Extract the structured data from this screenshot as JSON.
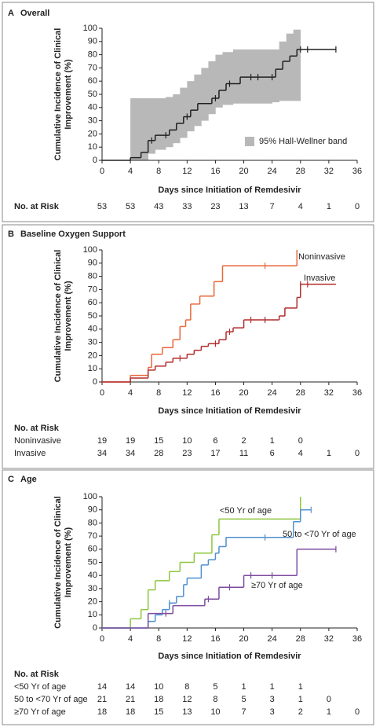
{
  "chart_data": [
    {
      "type": "step",
      "label": "A",
      "title": "Overall",
      "xlabel": "Days since Initiation of Remdesivir",
      "ylabel": [
        "Cumulative Incidence of Clinical",
        "Improvement (%)"
      ],
      "xlim": [
        0,
        36
      ],
      "xticks": [
        0,
        4,
        8,
        12,
        16,
        20,
        24,
        28,
        32,
        36
      ],
      "ylim": [
        0,
        100
      ],
      "yticks": [
        0,
        10,
        20,
        30,
        40,
        50,
        60,
        70,
        80,
        90,
        100
      ],
      "band": {
        "name": "95% Hall-Wellner band",
        "color": "#b8b8b8",
        "bins": [
          4,
          6.5,
          7.5,
          9,
          10,
          11,
          12,
          13,
          14,
          15,
          16,
          17,
          18.5,
          20,
          24,
          25,
          26,
          27,
          28
        ],
        "upper": [
          47,
          47,
          47,
          48,
          50,
          55,
          60,
          65,
          70,
          75,
          80,
          82,
          84,
          84,
          84,
          90,
          96,
          99
        ],
        "lower": [
          0,
          5,
          8,
          10,
          13,
          17,
          22,
          26,
          30,
          35,
          40,
          42,
          43,
          43,
          44,
          45,
          45,
          45
        ]
      },
      "series": [
        {
          "color": "#231f20",
          "x": [
            0,
            4,
            5.5,
            6.5,
            7.5,
            9.5,
            10.5,
            11.5,
            12.5,
            13.5,
            15.5,
            16.5,
            17.5,
            19.5,
            24.5,
            25.5,
            26.5,
            27.5,
            33
          ],
          "values": [
            0,
            2,
            6,
            15,
            19,
            23,
            28,
            33,
            38,
            43,
            47,
            53,
            58,
            63,
            69,
            75,
            79,
            84,
            84
          ],
          "censored": [
            7,
            9,
            12,
            16,
            18,
            21,
            22,
            24,
            28,
            29,
            33
          ]
        }
      ],
      "at_risk": {
        "title": "No. at Risk",
        "rows": [
          [
            53,
            53,
            43,
            33,
            23,
            13,
            7,
            4,
            1,
            0
          ]
        ]
      }
    },
    {
      "type": "step",
      "label": "B",
      "title": "Baseline Oxygen Support",
      "xlabel": "Days since Initiation of Remdesivir",
      "ylabel": [
        "Cumulative Incidence of Clinical",
        "Improvement (%)"
      ],
      "xlim": [
        0,
        36
      ],
      "xticks": [
        0,
        4,
        8,
        12,
        16,
        20,
        24,
        28,
        32,
        36
      ],
      "ylim": [
        0,
        100
      ],
      "yticks": [
        0,
        10,
        20,
        30,
        40,
        50,
        60,
        70,
        80,
        90,
        100
      ],
      "series": [
        {
          "name": "Noninvasive",
          "color": "#e8673a",
          "x": [
            0,
            4,
            6.5,
            7,
            8.5,
            10,
            11,
            11.8,
            12.5,
            13.8,
            15.8,
            17,
            27.5
          ],
          "values": [
            0,
            5,
            11,
            21,
            26,
            32,
            42,
            47,
            59,
            65,
            76,
            88,
            100
          ],
          "censored": [
            23
          ]
        },
        {
          "name": "Invasive",
          "color": "#b22c2c",
          "x": [
            0,
            4,
            6.5,
            7.5,
            9,
            10,
            12,
            13,
            14,
            15,
            16.5,
            17.5,
            18.5,
            20,
            25,
            25.8,
            27.5,
            28,
            33
          ],
          "values": [
            0,
            3,
            9,
            12,
            15,
            18,
            21,
            24,
            27,
            29,
            32,
            38,
            41,
            47,
            50,
            56,
            64,
            74,
            74
          ],
          "censored": [
            11,
            16,
            18,
            21,
            23,
            28,
            29
          ]
        }
      ],
      "at_risk": {
        "title": "No. at Risk",
        "rows": [
          [
            19,
            19,
            15,
            10,
            6,
            2,
            1,
            0,
            null,
            null
          ],
          [
            34,
            34,
            28,
            23,
            17,
            11,
            6,
            4,
            1,
            0
          ]
        ]
      }
    },
    {
      "type": "step",
      "label": "C",
      "title": "Age",
      "xlabel": "Days since Initiation of Remdesivir",
      "ylabel": [
        "Cumulative Incidence of Clinical",
        "Improvement (%)"
      ],
      "xlim": [
        0,
        36
      ],
      "xticks": [
        0,
        4,
        8,
        12,
        16,
        20,
        24,
        28,
        32,
        36
      ],
      "ylim": [
        0,
        100
      ],
      "yticks": [
        0,
        10,
        20,
        30,
        40,
        50,
        60,
        70,
        80,
        90,
        100
      ],
      "series": [
        {
          "name": "<50 Yr of age",
          "color": "#8dc63f",
          "x": [
            0,
            4,
            5.5,
            6.5,
            7.5,
            9.5,
            11,
            13,
            15.5,
            16.5,
            28
          ],
          "values": [
            0,
            7,
            14,
            29,
            36,
            43,
            50,
            57,
            71,
            83,
            100
          ],
          "censored": []
        },
        {
          "name": "50 to <70 Yr of age",
          "color": "#4f8fd0",
          "x": [
            0,
            6.5,
            7.5,
            8.5,
            9.5,
            10.5,
            11.5,
            12,
            14,
            15,
            16,
            16.5,
            17.5,
            27,
            28,
            29.5
          ],
          "values": [
            0,
            5,
            10,
            14,
            19,
            24,
            33,
            38,
            48,
            52,
            57,
            62,
            69,
            81,
            90,
            90
          ],
          "censored": [
            9.5,
            23,
            29.5
          ]
        },
        {
          "name": "≥70 Yr of age",
          "color": "#7d4ba0",
          "x": [
            0,
            6.5,
            10,
            14.5,
            16.5,
            20,
            27.5,
            33
          ],
          "values": [
            0,
            11,
            17,
            22,
            31,
            40,
            60,
            60
          ],
          "censored": [
            9,
            15,
            18,
            21,
            24,
            33
          ]
        }
      ],
      "at_risk": {
        "title": "No. at Risk",
        "rows": [
          [
            14,
            14,
            10,
            8,
            5,
            1,
            1,
            1,
            null,
            null
          ],
          [
            21,
            21,
            18,
            12,
            8,
            5,
            3,
            1,
            0,
            null
          ],
          [
            18,
            18,
            15,
            13,
            10,
            7,
            3,
            2,
            1,
            0
          ]
        ]
      }
    }
  ]
}
